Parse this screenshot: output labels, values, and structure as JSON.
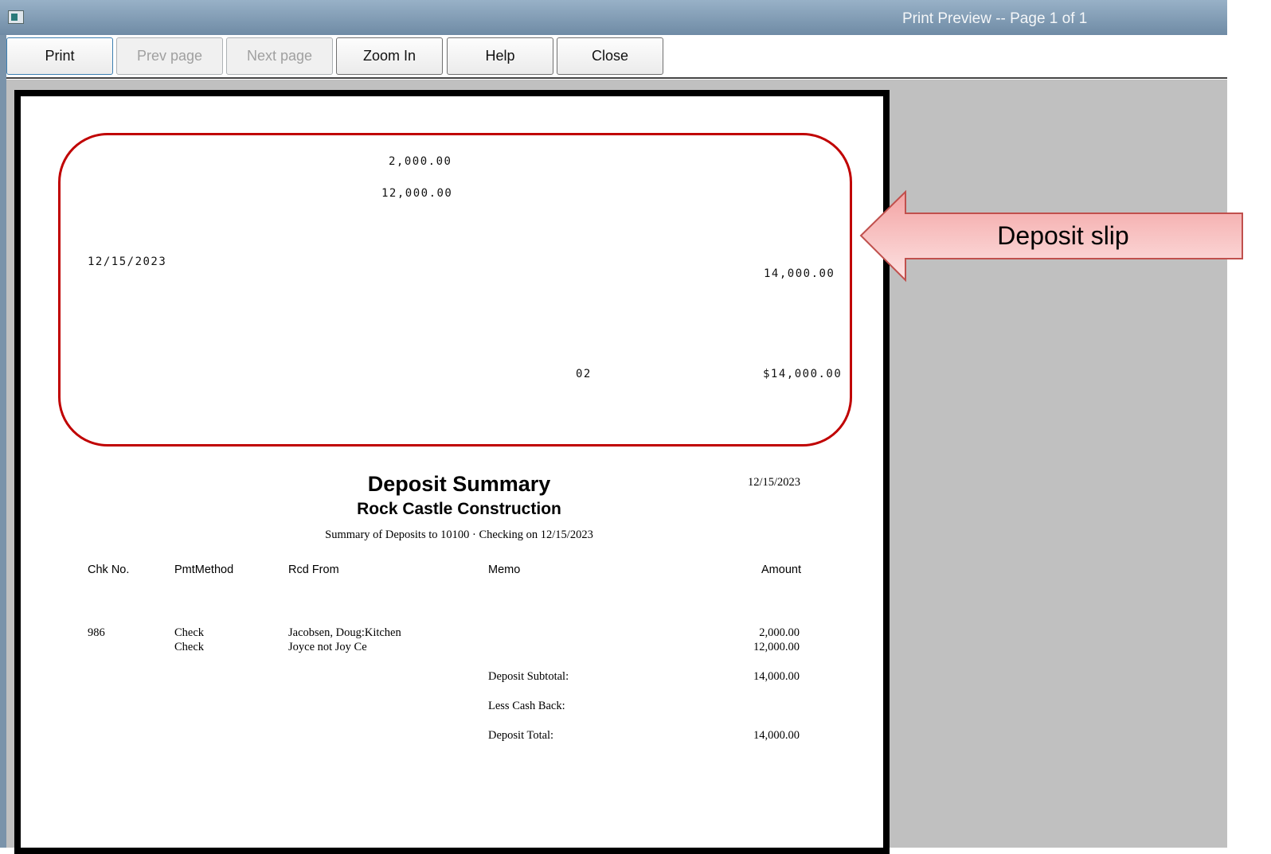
{
  "window": {
    "title": "Print Preview -- Page 1 of 1"
  },
  "toolbar": {
    "print": "Print",
    "prev": "Prev page",
    "next": "Next page",
    "zoom": "Zoom In",
    "help": "Help",
    "close": "Close"
  },
  "slip": {
    "amount1": "2,000.00",
    "amount2": "12,000.00",
    "date": "12/15/2023",
    "subtotal": "14,000.00",
    "count": "02",
    "total": "$14,000.00"
  },
  "report": {
    "title": "Deposit Summary",
    "company": "Rock Castle Construction",
    "date": "12/15/2023",
    "subtitle": "Summary of Deposits to 10100 · Checking on 12/15/2023",
    "columns": [
      "Chk No.",
      "PmtMethod",
      "Rcd From",
      "Memo",
      "Amount"
    ],
    "rows": [
      {
        "chk": "986",
        "method": "Check",
        "from": "Jacobsen, Doug:Kitchen",
        "amount": "2,000.00"
      },
      {
        "chk": "",
        "method": "Check",
        "from": "Joyce not Joy Ce",
        "amount": "12,000.00"
      }
    ],
    "subtotal_label": "Deposit Subtotal:",
    "subtotal": "14,000.00",
    "cashback_label": "Less Cash Back:",
    "total_label": "Deposit Total:",
    "total": "14,000.00"
  },
  "annotation": {
    "label": "Deposit slip",
    "accent": "#c00000"
  }
}
